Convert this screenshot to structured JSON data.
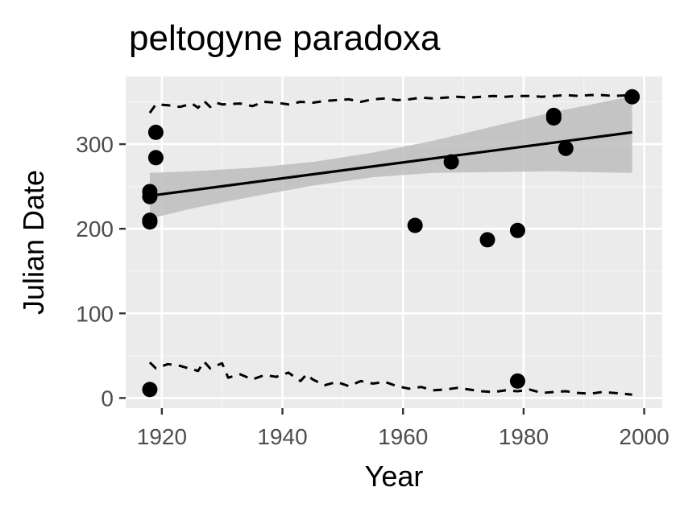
{
  "chart_data": {
    "type": "scatter",
    "title": "peltogyne paradoxa",
    "xlabel": "Year",
    "ylabel": "Julian Date",
    "xlim": [
      1914,
      2003
    ],
    "ylim": [
      -12,
      380
    ],
    "x_ticks": [
      1920,
      1940,
      1960,
      1980,
      2000
    ],
    "y_ticks": [
      0,
      100,
      200,
      300
    ],
    "grid": true,
    "legend": "none",
    "colors": {
      "panel": "#ebebeb",
      "grid_major": "#ffffff",
      "grid_minor": "#f5f5f5",
      "points": "#000000",
      "ribbon": "#bdbdbd",
      "text": "#000000",
      "tick_text": "#4d4d4d",
      "tick": "#333333"
    },
    "points": [
      {
        "x": 1918,
        "y": 10
      },
      {
        "x": 1918,
        "y": 208
      },
      {
        "x": 1918,
        "y": 210
      },
      {
        "x": 1918,
        "y": 238
      },
      {
        "x": 1918,
        "y": 244
      },
      {
        "x": 1919,
        "y": 284
      },
      {
        "x": 1919,
        "y": 314
      },
      {
        "x": 1962,
        "y": 204
      },
      {
        "x": 1968,
        "y": 279
      },
      {
        "x": 1974,
        "y": 187
      },
      {
        "x": 1979,
        "y": 198
      },
      {
        "x": 1979,
        "y": 20
      },
      {
        "x": 1985,
        "y": 331
      },
      {
        "x": 1985,
        "y": 334
      },
      {
        "x": 1987,
        "y": 295
      },
      {
        "x": 1998,
        "y": 356
      }
    ],
    "trend_line": {
      "x": [
        1918,
        1998
      ],
      "y": [
        239,
        314
      ]
    },
    "confidence_band": {
      "x": [
        1918,
        1925,
        1935,
        1945,
        1955,
        1965,
        1975,
        1985,
        1990,
        1998
      ],
      "lower": [
        212,
        224,
        238,
        251,
        261,
        266,
        267,
        268,
        267,
        266
      ],
      "upper": [
        266,
        268,
        272,
        279,
        290,
        304,
        321,
        338,
        345,
        357
      ]
    },
    "upper_dashed": {
      "x": [
        1918,
        1919,
        1921,
        1923,
        1925,
        1926,
        1927,
        1928,
        1929,
        1930,
        1933,
        1935,
        1937,
        1939,
        1941,
        1943,
        1945,
        1947,
        1949,
        1951,
        1953,
        1955,
        1957,
        1959,
        1961,
        1963,
        1965,
        1967,
        1969,
        1971,
        1973,
        1975,
        1977,
        1979,
        1981,
        1983,
        1985,
        1987,
        1989,
        1991,
        1993,
        1995,
        1998
      ],
      "y": [
        337,
        347,
        346,
        344,
        348,
        343,
        351,
        344,
        349,
        347,
        348,
        345,
        350,
        349,
        347,
        350,
        349,
        351,
        352,
        353,
        350,
        353,
        354,
        352,
        353,
        355,
        354,
        355,
        356,
        355,
        356,
        357,
        356,
        357,
        357,
        356,
        357,
        358,
        357,
        358,
        358,
        357,
        358
      ]
    },
    "lower_dashed": {
      "x": [
        1918,
        1919,
        1921,
        1923,
        1925,
        1926,
        1927,
        1928,
        1929,
        1930,
        1931,
        1933,
        1935,
        1937,
        1939,
        1941,
        1943,
        1944,
        1945,
        1947,
        1949,
        1951,
        1953,
        1955,
        1957,
        1959,
        1961,
        1963,
        1965,
        1967,
        1969,
        1971,
        1973,
        1975,
        1977,
        1979,
        1981,
        1983,
        1985,
        1987,
        1989,
        1991,
        1993,
        1995,
        1998
      ],
      "y": [
        42,
        35,
        40,
        38,
        34,
        32,
        43,
        35,
        38,
        41,
        24,
        28,
        22,
        27,
        25,
        30,
        20,
        28,
        22,
        15,
        19,
        14,
        20,
        17,
        19,
        14,
        11,
        13,
        9,
        10,
        12,
        10,
        8,
        7,
        9,
        8,
        10,
        6,
        7,
        8,
        6,
        5,
        7,
        6,
        4
      ]
    }
  }
}
